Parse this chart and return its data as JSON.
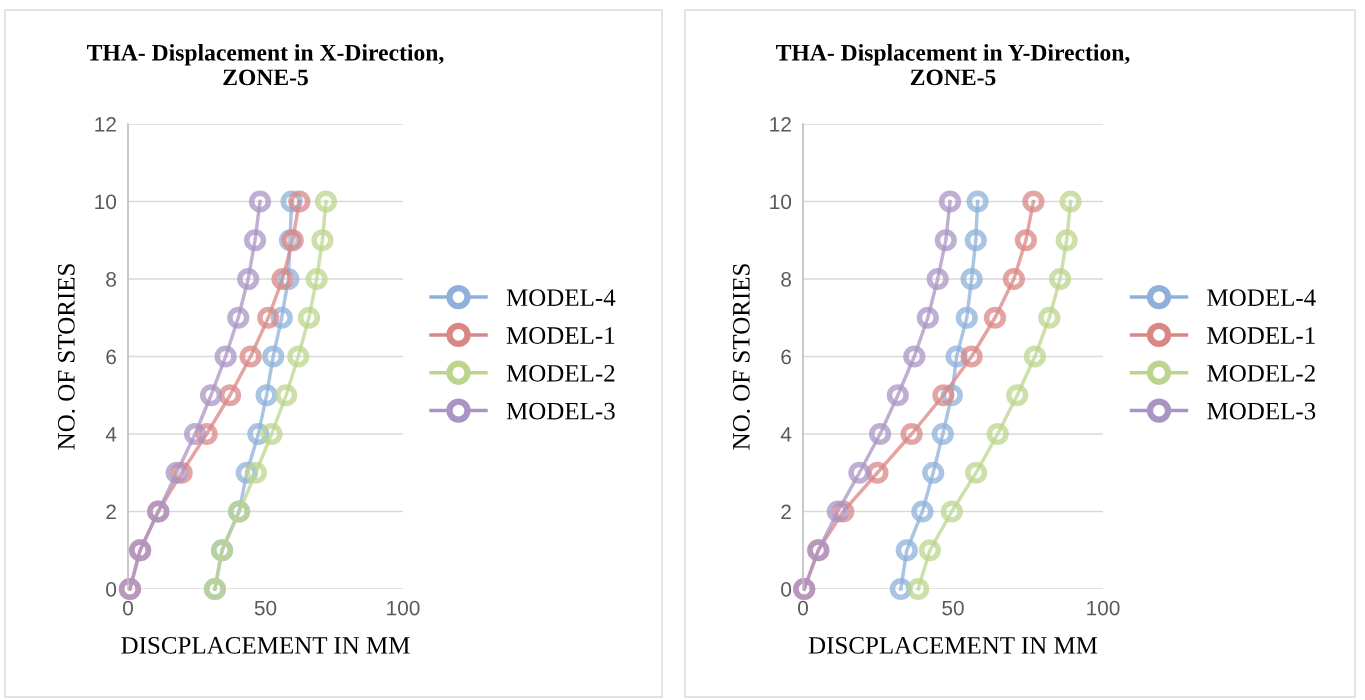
{
  "chart_data": [
    {
      "type": "line",
      "title": "THA- Displacement in X-Direction,\nZONE-5",
      "xlabel": "DISCPLACEMENT IN MM",
      "ylabel": "NO. OF STORIES",
      "xlim": [
        0,
        100
      ],
      "xticks": [
        0,
        50,
        100
      ],
      "ylim": [
        0,
        12
      ],
      "yticks": [
        0,
        2,
        4,
        6,
        8,
        10,
        12
      ],
      "grid": "y",
      "legend": "right",
      "marker": "circle",
      "line_style": "solid",
      "series": [
        {
          "name": "MODEL-4",
          "color": "#8eb0da",
          "x": [
            31.6,
            34.2,
            40.4,
            43.2,
            47.4,
            50.4,
            52.8,
            55.9,
            58.3,
            58.9,
            59.5
          ],
          "values": [
            0,
            1,
            2,
            3,
            4,
            5,
            6,
            7,
            8,
            9,
            10
          ]
        },
        {
          "name": "MODEL-1",
          "color": "#d98785",
          "x": [
            0.7,
            4.4,
            11,
            19.5,
            28.6,
            37.1,
            44.6,
            51,
            56.2,
            59.9,
            62.3
          ],
          "values": [
            0,
            1,
            2,
            3,
            4,
            5,
            6,
            7,
            8,
            9,
            10
          ]
        },
        {
          "name": "MODEL-2",
          "color": "#bcd58e",
          "x": [
            31.6,
            34.2,
            40.4,
            46.5,
            52.2,
            57.5,
            61.9,
            65.8,
            68.6,
            70.7,
            72
          ],
          "values": [
            0,
            1,
            2,
            3,
            4,
            5,
            6,
            7,
            8,
            9,
            10
          ]
        },
        {
          "name": "MODEL-3",
          "color": "#a994c4",
          "x": [
            0.7,
            4.4,
            11,
            17.7,
            24.4,
            30.2,
            35.5,
            40.1,
            43.7,
            46.2,
            48
          ],
          "values": [
            0,
            1,
            2,
            3,
            4,
            5,
            6,
            7,
            8,
            9,
            10
          ]
        }
      ]
    },
    {
      "type": "line",
      "title": "THA- Displacement in Y-Direction,\nZONE-5",
      "xlabel": "DISCPLACEMENT IN MM",
      "ylabel": "NO. OF STORIES",
      "xlim": [
        0,
        100
      ],
      "xticks": [
        0,
        50,
        100
      ],
      "ylim": [
        0,
        12
      ],
      "yticks": [
        0,
        2,
        4,
        6,
        8,
        10,
        12
      ],
      "grid": "y",
      "legend": "right",
      "marker": "circle",
      "line_style": "solid",
      "series": [
        {
          "name": "MODEL-4",
          "color": "#8eb0da",
          "x": [
            32.6,
            34.6,
            39.8,
            43.4,
            46.6,
            49.6,
            51.2,
            54.6,
            56.2,
            57.6,
            58.2
          ],
          "values": [
            0,
            1,
            2,
            3,
            4,
            5,
            6,
            7,
            8,
            9,
            10
          ]
        },
        {
          "name": "MODEL-1",
          "color": "#d98785",
          "x": [
            0.4,
            5.1,
            13.4,
            24.8,
            36.2,
            46.8,
            56.2,
            64,
            70.3,
            74.3,
            76.8
          ],
          "values": [
            0,
            1,
            2,
            3,
            4,
            5,
            6,
            7,
            8,
            9,
            10
          ]
        },
        {
          "name": "MODEL-2",
          "color": "#bcd58e",
          "x": [
            38.4,
            42.3,
            49.6,
            57.7,
            64.9,
            71.4,
            77.3,
            82.1,
            85.7,
            87.9,
            89.2
          ],
          "values": [
            0,
            1,
            2,
            3,
            4,
            5,
            6,
            7,
            8,
            9,
            10
          ]
        },
        {
          "name": "MODEL-3",
          "color": "#a994c4",
          "x": [
            0.4,
            5.1,
            11.6,
            18.8,
            25.7,
            31.6,
            37.1,
            41.6,
            44.9,
            47.6,
            49
          ],
          "values": [
            0,
            1,
            2,
            3,
            4,
            5,
            6,
            7,
            8,
            9,
            10
          ]
        }
      ]
    }
  ]
}
